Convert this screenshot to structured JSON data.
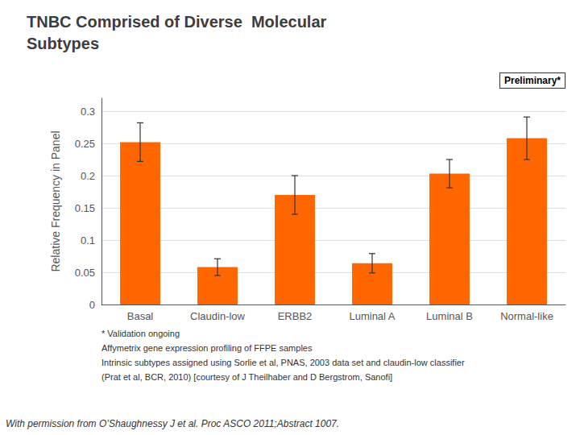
{
  "chart_data": {
    "type": "bar",
    "title": "TNBC Comprised of Diverse  Molecular\nSubtypes",
    "ylabel": "Relative Frequency in Panel",
    "categories": [
      "Basal",
      "Claudin-low",
      "ERBB2",
      "Luminal A",
      "Luminal B",
      "Normal-like"
    ],
    "values": [
      0.252,
      0.058,
      0.17,
      0.064,
      0.203,
      0.258
    ],
    "errors": [
      0.03,
      0.013,
      0.03,
      0.015,
      0.022,
      0.033
    ],
    "color": "#FF6600",
    "ylim": [
      0,
      0.32
    ],
    "yticks": [
      0,
      0.05,
      0.1,
      0.15,
      0.2,
      0.25,
      0.3
    ],
    "grid": true,
    "annotations": [
      "Preliminary*",
      "* Validation ongoing",
      "Affymetrix gene expression profiling of FFPE samples",
      "Intrinsic subtypes assigned using Sorlie et al, PNAS, 2003 data set and claudin-low classifier",
      "(Prat et al, BCR, 2010) [courtesy of J Theilhaber and D Bergstrom, Sanofi]",
      "With permission from O’Shaughnessy J et al. Proc ASCO 2011;Abstract 1007."
    ]
  }
}
